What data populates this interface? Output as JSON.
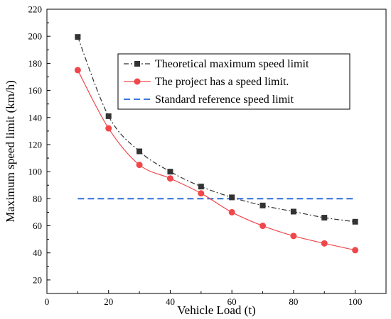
{
  "chart_data": {
    "type": "line",
    "xlabel": "Vehicle Load (t)",
    "ylabel": "Maximum speed limit (km/h)",
    "xlim": [
      0,
      110
    ],
    "ylim": [
      10,
      220
    ],
    "xticks": [
      0,
      20,
      40,
      60,
      80,
      100
    ],
    "yticks": [
      20,
      40,
      60,
      80,
      100,
      120,
      140,
      160,
      180,
      200,
      220
    ],
    "grid": false,
    "legend_position": "top-right",
    "series": [
      {
        "name": "Theoretical maximum speed limit",
        "color": "#333333",
        "line_style": "dashdot",
        "marker": "square",
        "x": [
          10,
          20,
          30,
          40,
          50,
          60,
          70,
          80,
          90,
          100
        ],
        "y": [
          199.5,
          141,
          115,
          100,
          89,
          81,
          75,
          70.5,
          66,
          63
        ]
      },
      {
        "name": "The project has a speed limit.",
        "color": "#f0474b",
        "line_style": "solid",
        "marker": "circle",
        "x": [
          10,
          20,
          30,
          40,
          50,
          60,
          70,
          80,
          90,
          100
        ],
        "y": [
          175,
          132,
          105,
          95,
          84,
          70,
          60,
          52.5,
          47,
          42
        ]
      },
      {
        "name": "Standard reference speed limit",
        "color": "#1f66d6",
        "line_style": "dashed",
        "marker": "none",
        "x": [
          10,
          100
        ],
        "y": [
          80,
          80
        ]
      }
    ]
  }
}
